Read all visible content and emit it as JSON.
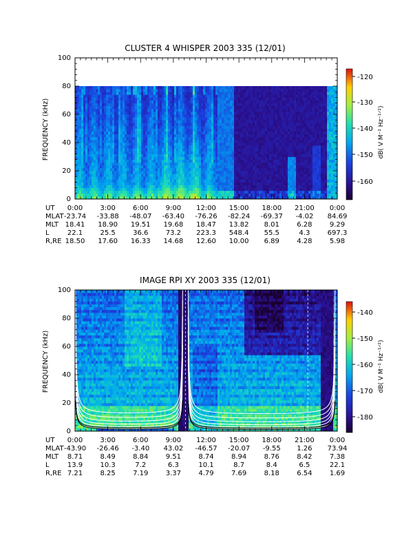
{
  "chart_data": [
    {
      "type": "heatmap",
      "title": "CLUSTER 4 WHISPER 2003 335 (12/01)",
      "ylabel": "FREQUENCY (kHz)",
      "ylim": [
        0,
        100
      ],
      "yticks": [
        "0",
        "20",
        "40",
        "60",
        "80",
        "100"
      ],
      "data_ymax": 80,
      "colorbar": {
        "label": "dB( V M⁻¹ Hz⁻¹ᐟ²)",
        "ticks": [
          "-120",
          "-130",
          "-140",
          "-150",
          "-160"
        ],
        "range": [
          -166,
          -118
        ]
      },
      "xlim_hours": [
        0,
        24
      ],
      "ephemeris": {
        "labels": [
          "UT",
          "MLAT",
          "MLT",
          "L",
          "R,RE"
        ],
        "columns": [
          [
            "0:00",
            "3:00",
            "6:00",
            "9:00",
            "12:00",
            "15:00",
            "18:00",
            "21:00",
            "0:00"
          ],
          [
            "-23.74",
            "-33.88",
            "-48.07",
            "-63.40",
            "-76.26",
            "-82.24",
            "-69.37",
            "-4.02",
            "84.69"
          ],
          [
            "18.41",
            "18.90",
            "19.51",
            "19.68",
            "18.47",
            "13.82",
            "8.01",
            "6.28",
            "9.29"
          ],
          [
            "22.1",
            "25.5",
            "36.6",
            "73.2",
            "223.3",
            "548.4",
            "55.5",
            "4.3",
            "697.3"
          ],
          [
            "18.50",
            "17.60",
            "16.33",
            "14.68",
            "12.60",
            "10.00",
            "6.89",
            "4.28",
            "5.98"
          ]
        ]
      }
    },
    {
      "type": "heatmap",
      "title": "IMAGE RPI XY 2003 335 (12/01)",
      "ylabel": "FREQUENCY (kHz)",
      "ylim": [
        0,
        100
      ],
      "yticks": [
        "0",
        "20",
        "40",
        "60",
        "80",
        "100"
      ],
      "data_ymax": 100,
      "colorbar": {
        "label": "dB( V M⁻¹ Hz⁻¹ᐟ²)",
        "ticks": [
          "-140",
          "-150",
          "-160",
          "-170",
          "-180"
        ],
        "range": [
          -185,
          -135
        ]
      },
      "xlim_hours": [
        0,
        24
      ],
      "ephemeris": {
        "labels": [
          "UT",
          "MLAT",
          "MLT",
          "L",
          "R,RE"
        ],
        "columns": [
          [
            "0:00",
            "3:00",
            "6:00",
            "9:00",
            "12:00",
            "15:00",
            "18:00",
            "21:00",
            "0:00"
          ],
          [
            "-43.90",
            "-26.46",
            "-3.40",
            "43.02",
            "-46.57",
            "-20.07",
            "-9.55",
            "1.26",
            "73.94"
          ],
          [
            "8.71",
            "8.49",
            "8.84",
            "9.51",
            "8.74",
            "8.94",
            "8.76",
            "8.42",
            "7.38"
          ],
          [
            "13.9",
            "10.3",
            "7.2",
            "6.3",
            "10.1",
            "8.7",
            "8.4",
            "6.5",
            "22.1"
          ],
          [
            "7.21",
            "8.25",
            "7.19",
            "3.37",
            "4.79",
            "7.69",
            "8.18",
            "6.54",
            "1.69"
          ]
        ]
      }
    }
  ]
}
